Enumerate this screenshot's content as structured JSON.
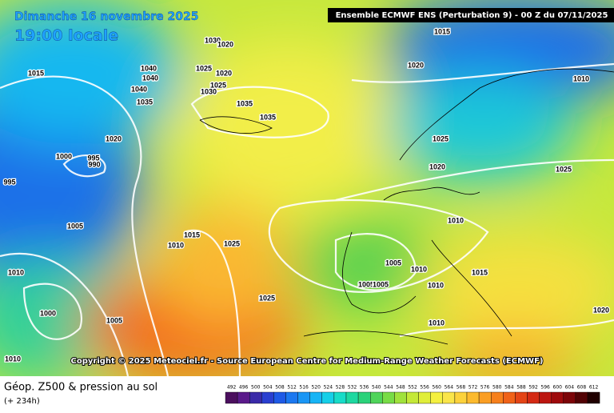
{
  "header": {
    "date": "Dimanche 16 novembre 2025",
    "time": "19:00 locale",
    "model": "Ensemble ECMWF ENS  (Perturbation 9)  -  00 Z du 07/11/2025"
  },
  "copyright": "Copyright © 2025 Meteociel.fr - Source European Centre for Medium-Range Weather Forecasts (ECMWF)",
  "footer": {
    "title": "Géop. Z500 & pression au sol",
    "lead": "(+ 234h)"
  },
  "legend": {
    "labels": [
      "492",
      "496",
      "500",
      "504",
      "508",
      "512",
      "516",
      "520",
      "524",
      "528",
      "532",
      "536",
      "540",
      "544",
      "548",
      "552",
      "556",
      "560",
      "564",
      "568",
      "572",
      "576",
      "580",
      "584",
      "588",
      "592",
      "596",
      "600",
      "604",
      "608",
      "612"
    ],
    "colors": [
      "#4b0f5e",
      "#5a1a8a",
      "#3a2aa8",
      "#2a3fd0",
      "#1f5ae6",
      "#1c78f0",
      "#1a96f5",
      "#17b4f5",
      "#16cfe8",
      "#18dcc8",
      "#1ed8a0",
      "#2bd27a",
      "#4fd45a",
      "#78dc46",
      "#a0e23c",
      "#c4e838",
      "#e0ee3a",
      "#f4f040",
      "#fae54a",
      "#fcd23c",
      "#fcba2e",
      "#fa9e24",
      "#f6801c",
      "#f06218",
      "#e44416",
      "#d42a14",
      "#bc1610",
      "#9e0a0c",
      "#7c0408",
      "#520204",
      "#200000"
    ]
  },
  "isobars": [
    "1015",
    "1040",
    "1040",
    "1040",
    "1035",
    "1030",
    "1020",
    "1025",
    "1020",
    "1025",
    "1030",
    "1035",
    "1035",
    "1020",
    "1000",
    "995",
    "990",
    "995",
    "1005",
    "1010",
    "1015",
    "1025",
    "1010",
    "1000",
    "1005",
    "1025",
    "1010",
    "1015",
    "1020",
    "1010",
    "1025",
    "1020",
    "1025",
    "1010",
    "1005",
    "1010",
    "1005",
    "1005",
    "1010",
    "1015",
    "1020",
    "1010"
  ]
}
